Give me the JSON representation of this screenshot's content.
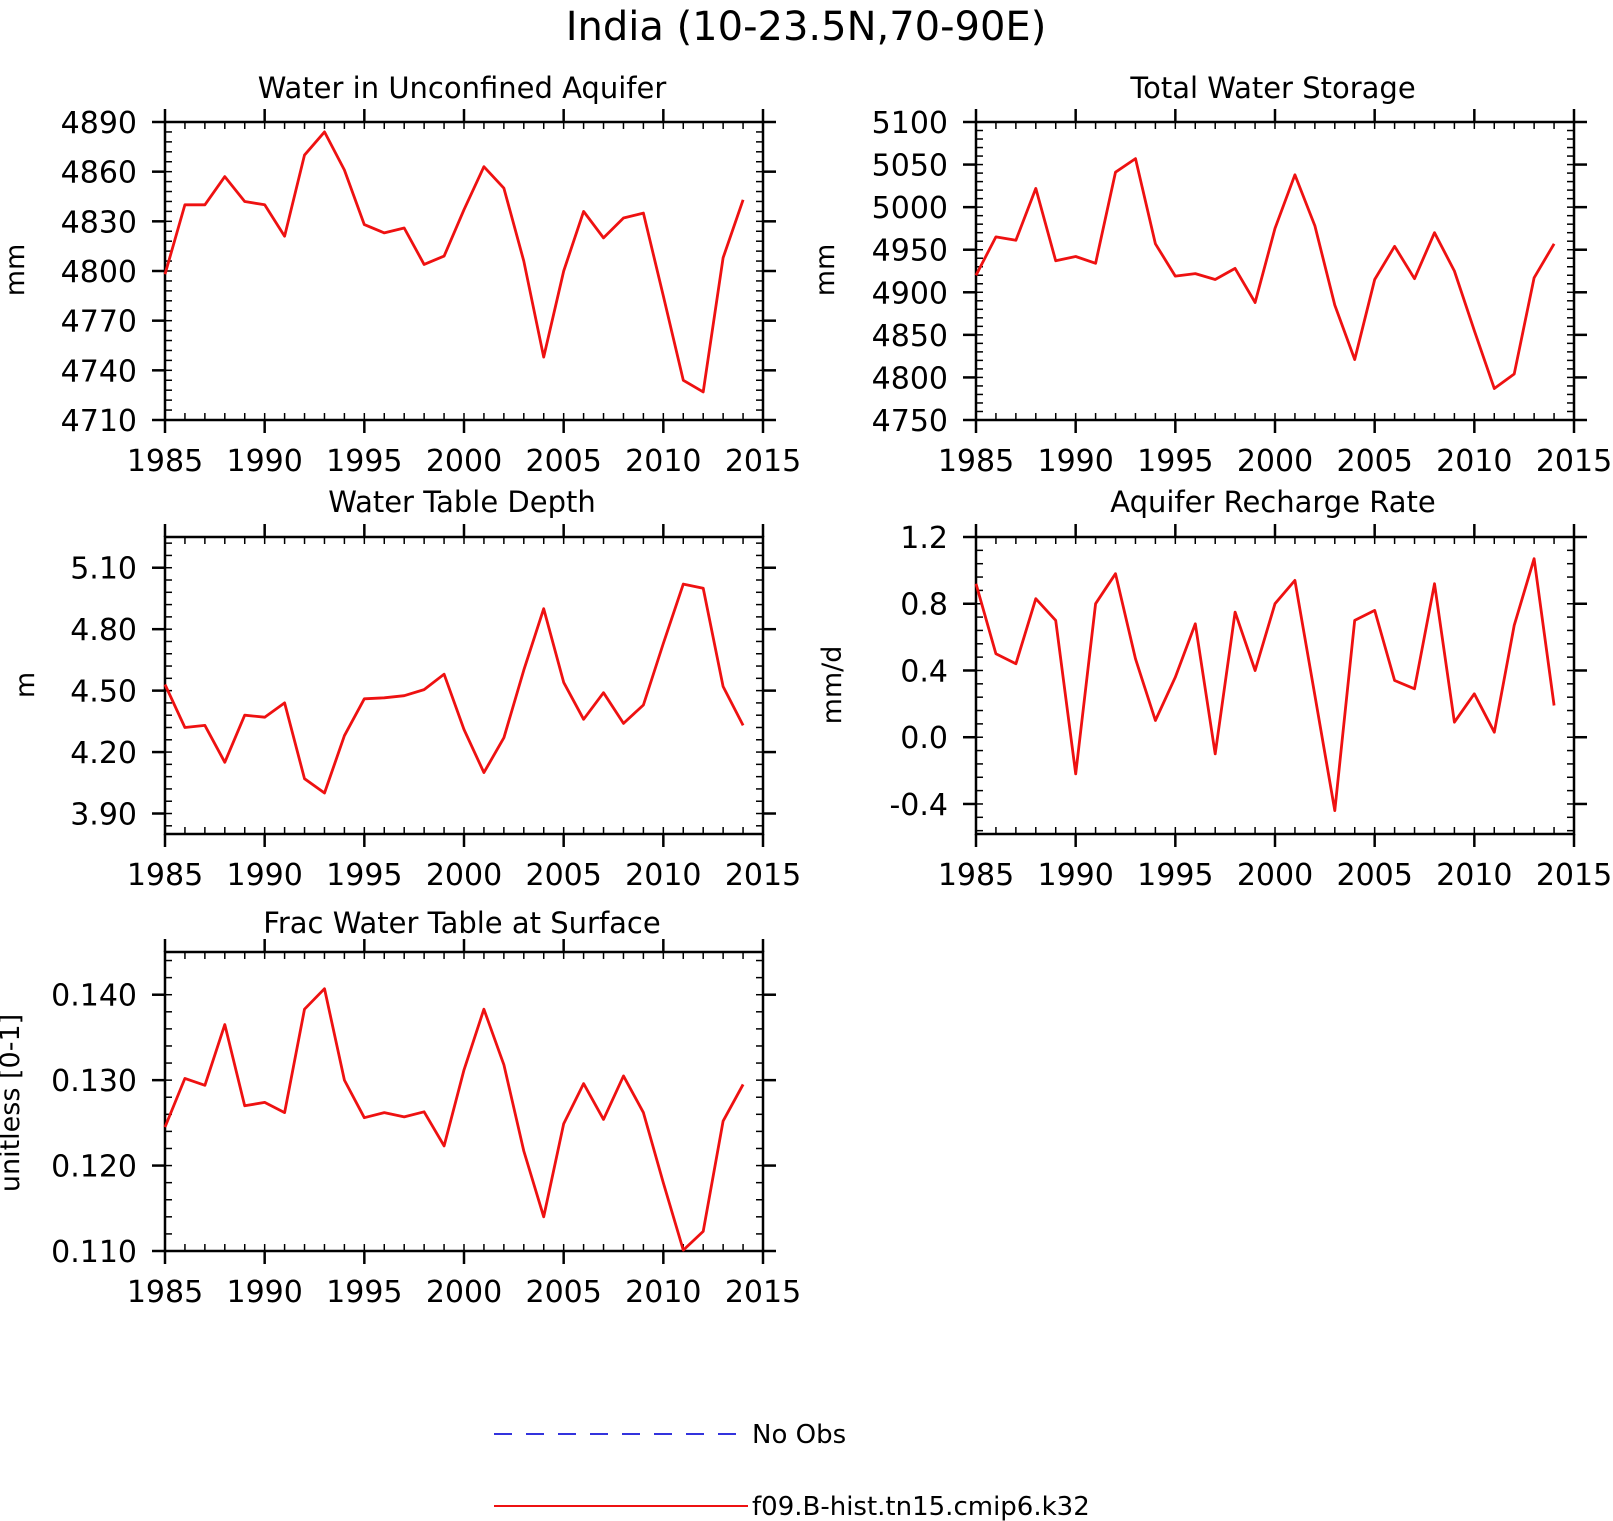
{
  "figure_title": "India (10-23.5N,70-90E)",
  "legend": [
    {
      "label": "No Obs",
      "color": "#3333dd",
      "dash": true
    },
    {
      "label": "f09.B-hist.tn15.cmip6.k32",
      "color": "#ee1111",
      "dash": false
    }
  ],
  "chart_data": [
    {
      "type": "line",
      "title": "Water in Unconfined Aquifer",
      "ylabel": "mm",
      "xlim": [
        1985,
        2015
      ],
      "ylim": [
        4710,
        4890
      ],
      "xticks": [
        "1985",
        "1990",
        "1995",
        "2000",
        "2005",
        "2010",
        "2015"
      ],
      "yticks": [
        "4710",
        "4740",
        "4770",
        "4800",
        "4830",
        "4860",
        "4890"
      ],
      "series": [
        {
          "color": "#ee1111",
          "x": [
            1985,
            1986,
            1987,
            1988,
            1989,
            1990,
            1991,
            1992,
            1993,
            1994,
            1995,
            1996,
            1997,
            1998,
            1999,
            2000,
            2001,
            2002,
            2003,
            2004,
            2005,
            2006,
            2007,
            2008,
            2009,
            2010,
            2011,
            2012,
            2013,
            2014
          ],
          "y": [
            4798,
            4840,
            4840,
            4857,
            4842,
            4840,
            4821,
            4870,
            4884,
            4861,
            4828,
            4823,
            4826,
            4804,
            4809,
            4837,
            4863,
            4850,
            4806,
            4748,
            4800,
            4836,
            4820,
            4832,
            4835,
            4785,
            4734,
            4727,
            4808,
            4843
          ]
        }
      ]
    },
    {
      "type": "line",
      "title": "Total Water Storage",
      "ylabel": "mm",
      "xlim": [
        1985,
        2015
      ],
      "ylim": [
        4750,
        5100
      ],
      "xticks": [
        "1985",
        "1990",
        "1995",
        "2000",
        "2005",
        "2010",
        "2015"
      ],
      "yticks": [
        "4750",
        "4800",
        "4850",
        "4900",
        "4950",
        "5000",
        "5050",
        "5100"
      ],
      "series": [
        {
          "color": "#ee1111",
          "x": [
            1985,
            1986,
            1987,
            1988,
            1989,
            1990,
            1991,
            1992,
            1993,
            1994,
            1995,
            1996,
            1997,
            1998,
            1999,
            2000,
            2001,
            2002,
            2003,
            2004,
            2005,
            2006,
            2007,
            2008,
            2009,
            2010,
            2011,
            2012,
            2013,
            2014
          ],
          "y": [
            4920,
            4965,
            4961,
            5022,
            4937,
            4942,
            4934,
            5041,
            5057,
            4957,
            4919,
            4922,
            4915,
            4928,
            4888,
            4975,
            5038,
            4978,
            4885,
            4821,
            4915,
            4954,
            4916,
            4970,
            4925,
            4855,
            4787,
            4804,
            4917,
            4957
          ]
        }
      ]
    },
    {
      "type": "line",
      "title": "Water Table Depth",
      "ylabel": "m",
      "xlim": [
        1985,
        2015
      ],
      "ylim": [
        3.8,
        5.25
      ],
      "xticks": [
        "1985",
        "1990",
        "1995",
        "2000",
        "2005",
        "2010",
        "2015"
      ],
      "yticks": [
        "3.90",
        "4.20",
        "4.50",
        "4.80",
        "5.10"
      ],
      "series": [
        {
          "color": "#ee1111",
          "x": [
            1985,
            1986,
            1987,
            1988,
            1989,
            1990,
            1991,
            1992,
            1993,
            1994,
            1995,
            1996,
            1997,
            1998,
            1999,
            2000,
            2001,
            2002,
            2003,
            2004,
            2005,
            2006,
            2007,
            2008,
            2009,
            2010,
            2011,
            2012,
            2013,
            2014
          ],
          "y": [
            4.53,
            4.32,
            4.33,
            4.15,
            4.38,
            4.37,
            4.44,
            4.07,
            4.0,
            4.28,
            4.46,
            4.465,
            4.475,
            4.505,
            4.58,
            4.31,
            4.1,
            4.27,
            4.6,
            4.9,
            4.54,
            4.36,
            4.49,
            4.34,
            4.43,
            4.73,
            5.02,
            5.0,
            4.52,
            4.33
          ]
        }
      ]
    },
    {
      "type": "line",
      "title": "Aquifer Recharge Rate",
      "ylabel": "mm/d",
      "xlim": [
        1985,
        2015
      ],
      "ylim": [
        -0.58,
        1.2
      ],
      "xticks": [
        "1985",
        "1990",
        "1995",
        "2000",
        "2005",
        "2010",
        "2015"
      ],
      "yticks": [
        "-0.4",
        "0.0",
        "0.4",
        "0.8",
        "1.2"
      ],
      "series": [
        {
          "color": "#ee1111",
          "x": [
            1985,
            1986,
            1987,
            1988,
            1989,
            1990,
            1991,
            1992,
            1993,
            1994,
            1995,
            1996,
            1997,
            1998,
            1999,
            2000,
            2001,
            2002,
            2003,
            2004,
            2005,
            2006,
            2007,
            2008,
            2009,
            2010,
            2011,
            2012,
            2013,
            2014
          ],
          "y": [
            0.92,
            0.5,
            0.44,
            0.83,
            0.7,
            -0.22,
            0.8,
            0.98,
            0.47,
            0.1,
            0.36,
            0.68,
            -0.1,
            0.75,
            0.4,
            0.8,
            0.94,
            0.25,
            -0.44,
            0.7,
            0.76,
            0.34,
            0.29,
            0.92,
            0.09,
            0.26,
            0.03,
            0.67,
            1.07,
            0.19
          ]
        }
      ]
    },
    {
      "type": "line",
      "title": "Frac Water Table at Surface",
      "ylabel": "unitless [0-1]",
      "xlim": [
        1985,
        2015
      ],
      "ylim": [
        0.11,
        0.145
      ],
      "xticks": [
        "1985",
        "1990",
        "1995",
        "2000",
        "2005",
        "2010",
        "2015"
      ],
      "yticks": [
        "0.110",
        "0.120",
        "0.130",
        "0.140"
      ],
      "series": [
        {
          "color": "#ee1111",
          "x": [
            1985,
            1986,
            1987,
            1988,
            1989,
            1990,
            1991,
            1992,
            1993,
            1994,
            1995,
            1996,
            1997,
            1998,
            1999,
            2000,
            2001,
            2002,
            2003,
            2004,
            2005,
            2006,
            2007,
            2008,
            2009,
            2010,
            2011,
            2012,
            2013,
            2014
          ],
          "y": [
            0.1245,
            0.1302,
            0.1294,
            0.1365,
            0.127,
            0.1274,
            0.1262,
            0.1383,
            0.1407,
            0.13,
            0.1256,
            0.1262,
            0.1257,
            0.1263,
            0.1223,
            0.1312,
            0.1383,
            0.1318,
            0.1217,
            0.114,
            0.1249,
            0.1296,
            0.1254,
            0.1305,
            0.1262,
            0.118,
            0.1101,
            0.1123,
            0.1252,
            0.1295
          ]
        }
      ]
    }
  ]
}
